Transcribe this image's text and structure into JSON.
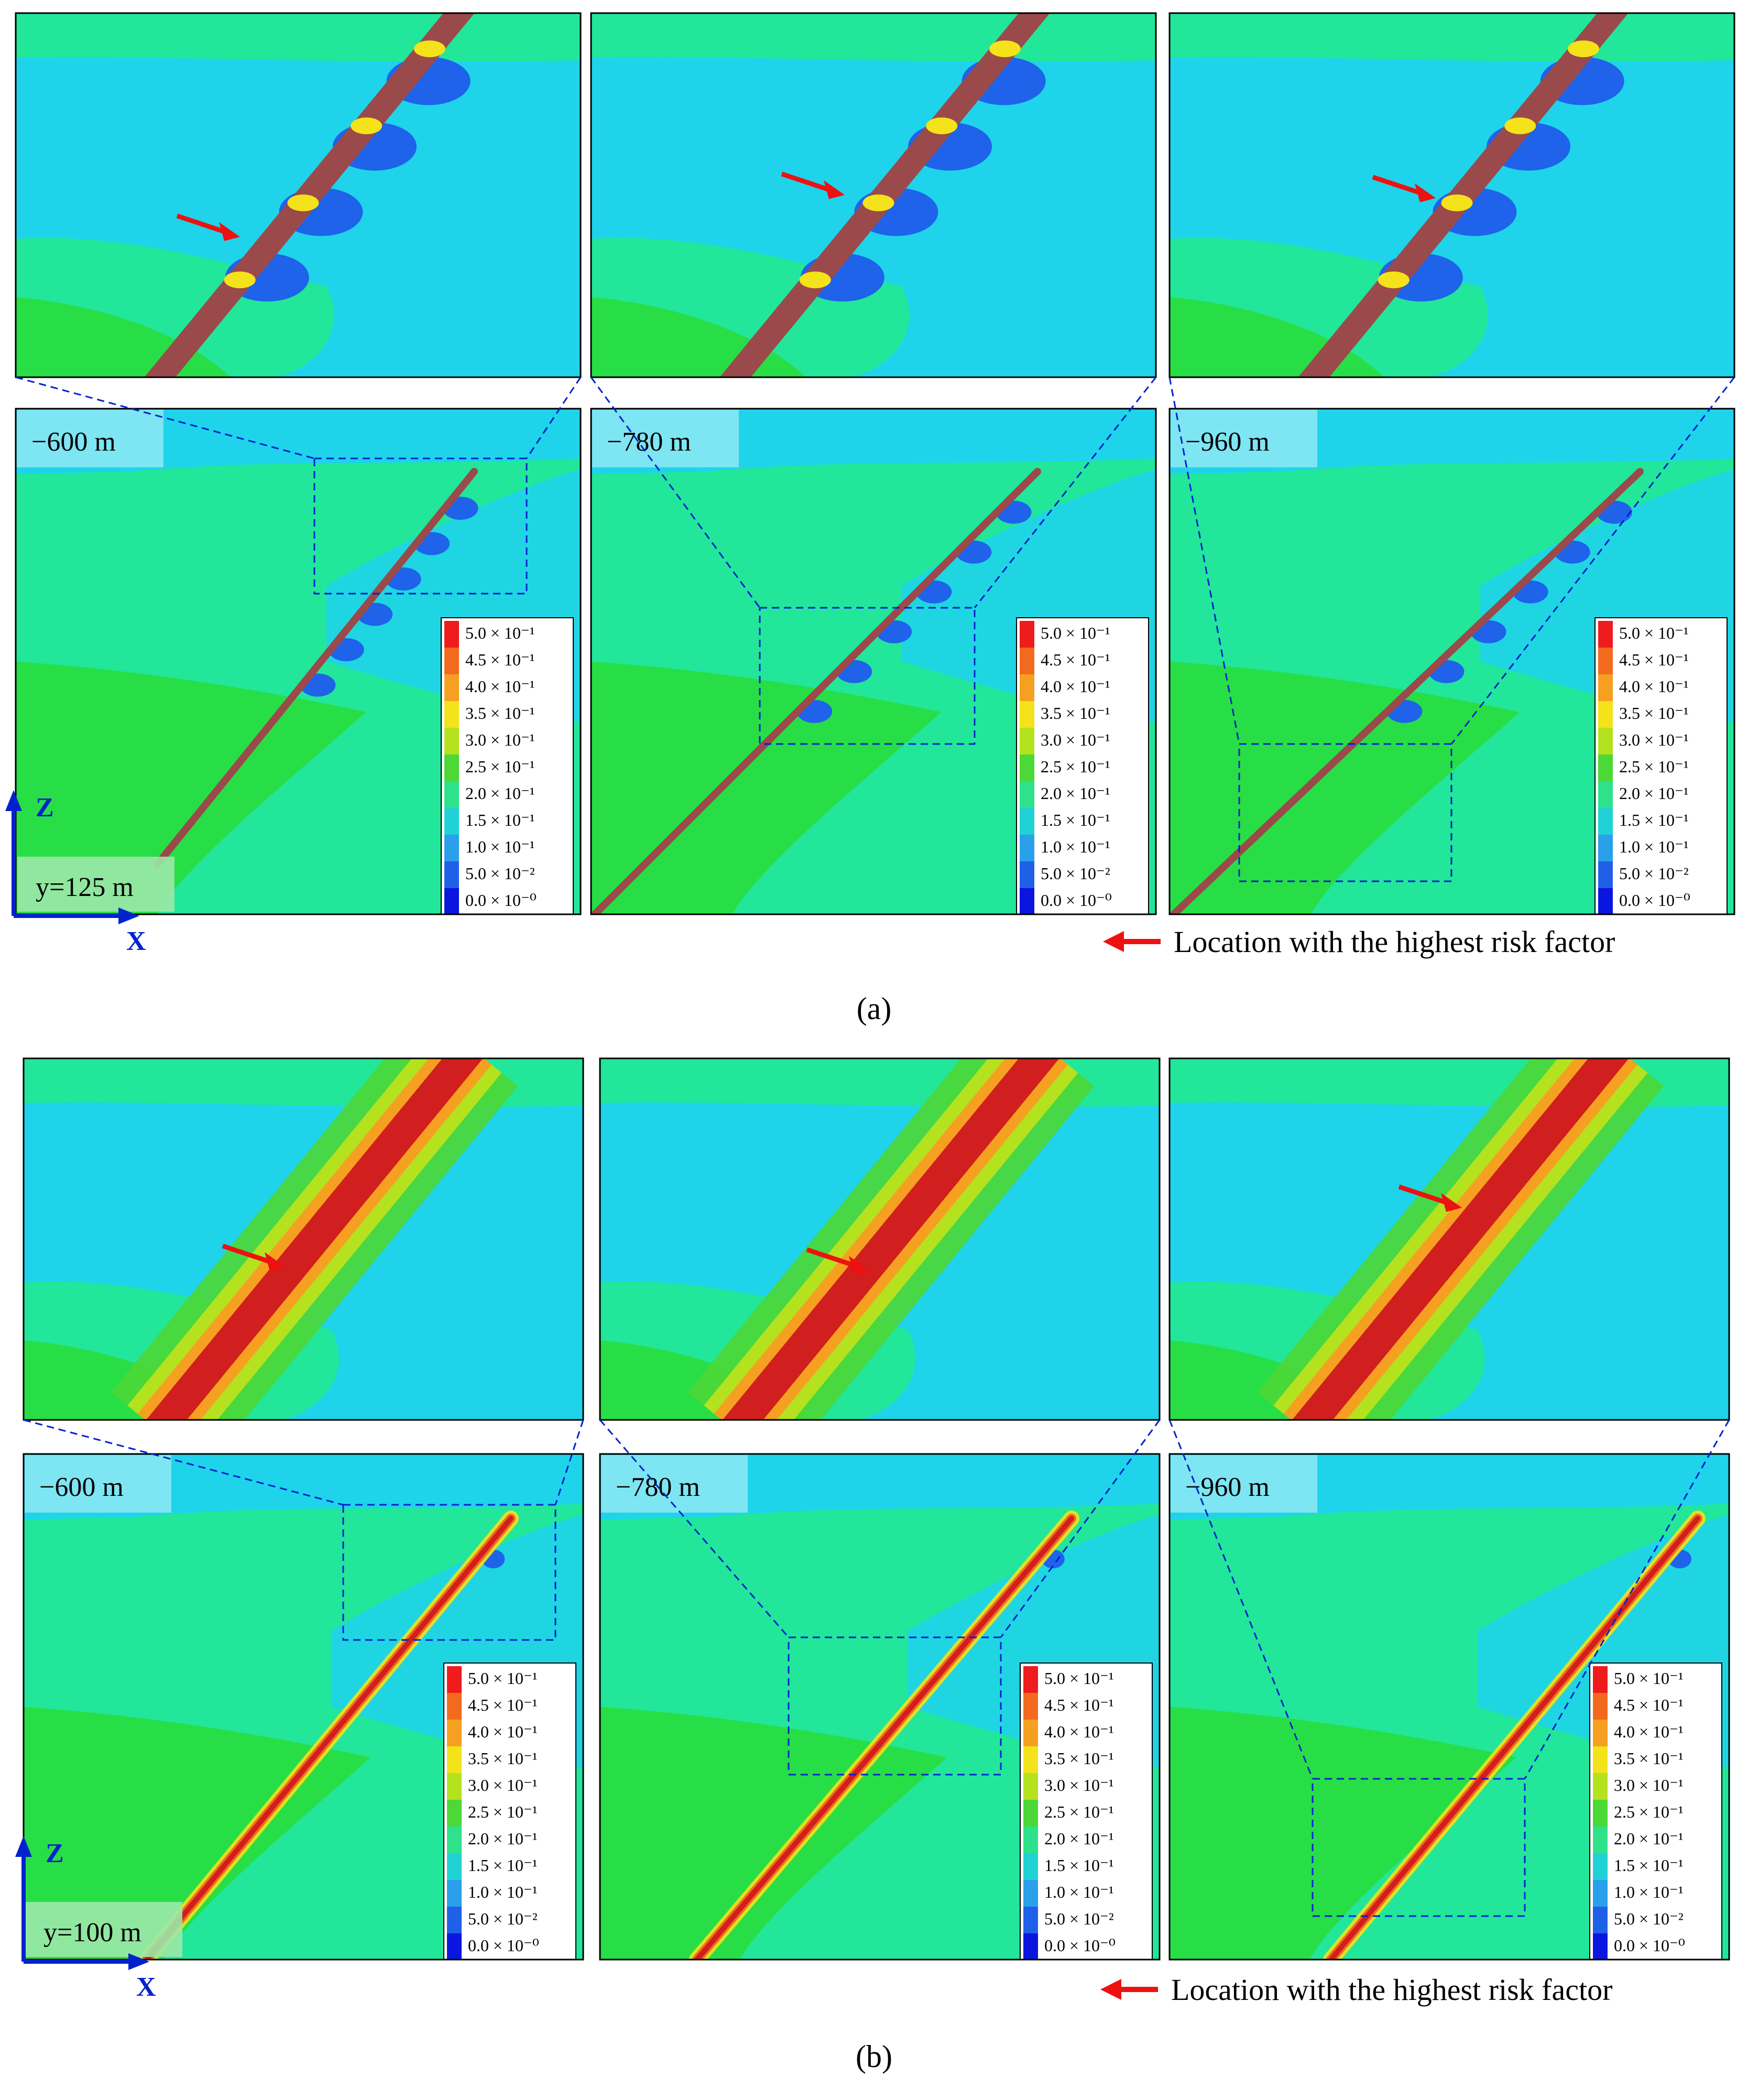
{
  "figure_a": {
    "caption": "(a)",
    "section_label": "y=125 m",
    "panels": [
      {
        "depth_label": "−600 m",
        "band_style": "blue",
        "highest_risk_along_fault": 0.35
      },
      {
        "depth_label": "−780 m",
        "band_style": "blue",
        "highest_risk_along_fault": 0.35
      },
      {
        "depth_label": "−960 m",
        "band_style": "blue",
        "highest_risk_along_fault": 0.35
      }
    ]
  },
  "figure_b": {
    "caption": "(b)",
    "section_label": "y=100 m",
    "panels": [
      {
        "depth_label": "−600 m",
        "band_style": "red",
        "highest_risk_along_fault": 0.5
      },
      {
        "depth_label": "−780 m",
        "band_style": "red",
        "highest_risk_along_fault": 0.5
      },
      {
        "depth_label": "−960 m",
        "band_style": "red",
        "highest_risk_along_fault": 0.5
      }
    ]
  },
  "axes": {
    "z_label": "Z",
    "x_label": "X"
  },
  "legend_arrow_text": "Location with the highest risk factor",
  "colorbar": {
    "labels": [
      "5.0 × 10⁻¹",
      "4.5 × 10⁻¹",
      "4.0 × 10⁻¹",
      "3.5 × 10⁻¹",
      "3.0 × 10⁻¹",
      "2.5 × 10⁻¹",
      "2.0 × 10⁻¹",
      "1.5 × 10⁻¹",
      "1.0 × 10⁻¹",
      "5.0 × 10⁻²",
      "0.0 × 10⁻⁰"
    ],
    "colors": [
      "#ee1c1c",
      "#f26a1e",
      "#f5a020",
      "#f4e21a",
      "#b4e21e",
      "#4cd836",
      "#2ee28c",
      "#20d2d6",
      "#2aa0ea",
      "#2060e8",
      "#0a16e0"
    ]
  },
  "colors": {
    "field_green": "#22e69a",
    "field_cyan": "#1fd3ea",
    "field_lightgreen": "#28de46",
    "field_blue": "#1e63ea",
    "fault_brown": "#9a4a4a",
    "fault_red": "#d11e1e",
    "frame_blue": "#0022cc",
    "arrow_red": "#ee1111",
    "tag_bg": "#8fe8f4"
  }
}
